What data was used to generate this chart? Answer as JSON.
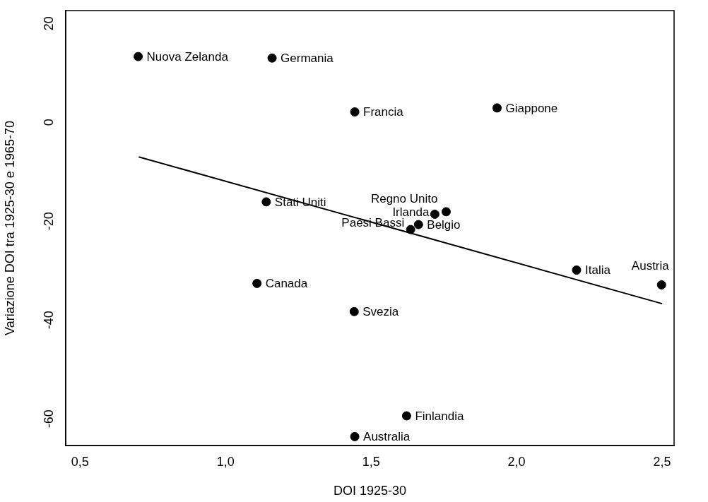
{
  "chart_data": {
    "type": "scatter",
    "xlabel": "DOI 1925-30",
    "ylabel": "Variazione DOI tra 1925-30 e 1965-70",
    "xlim": [
      0.451,
      2.541
    ],
    "ylim": [
      -65.4,
      22.6
    ],
    "xticks": [
      {
        "value": 0.5,
        "label": "0,5"
      },
      {
        "value": 1,
        "label": "1,0"
      },
      {
        "value": 1.5,
        "label": "1,5"
      },
      {
        "value": 2,
        "label": "2,0"
      },
      {
        "value": 2.5,
        "label": "2,5"
      }
    ],
    "yticks": [
      -60,
      -40,
      -20,
      0,
      20
    ],
    "grid": false,
    "legend": false,
    "marker": "circle",
    "series": [
      {
        "name": "Nuova Zelanda",
        "color": "#000000",
        "x": [
          0.7
        ],
        "values": [
          13.3
        ]
      },
      {
        "name": "Germania",
        "color": "#000000",
        "x": [
          1.16
        ],
        "values": [
          13.0
        ]
      },
      {
        "name": "Francia",
        "color": "#000000",
        "x": [
          1.444
        ],
        "values": [
          2.1
        ]
      },
      {
        "name": "Giappone",
        "color": "#000000",
        "x": [
          1.933
        ],
        "values": [
          2.9
        ]
      },
      {
        "name": "Stati Uniti",
        "color": "#000000",
        "x": [
          1.14
        ],
        "values": [
          -16.1
        ]
      },
      {
        "name": "Regno Unito",
        "color": "#000000",
        "x": [
          1.758
        ],
        "values": [
          -18.1
        ]
      },
      {
        "name": "Irlanda",
        "color": "#000000",
        "x": [
          1.719
        ],
        "values": [
          -18.6
        ]
      },
      {
        "name": "Belgio",
        "color": "#000000",
        "x": [
          1.663
        ],
        "values": [
          -20.7
        ]
      },
      {
        "name": "Paesi Bassi",
        "color": "#000000",
        "x": [
          1.636
        ],
        "values": [
          -21.7
        ]
      },
      {
        "name": "Italia",
        "color": "#000000",
        "x": [
          2.206
        ],
        "values": [
          -29.9
        ]
      },
      {
        "name": "Austria",
        "color": "#000000",
        "x": [
          2.498
        ],
        "values": [
          -32.9
        ]
      },
      {
        "name": "Canada",
        "color": "#000000",
        "x": [
          1.108
        ],
        "values": [
          -32.6
        ]
      },
      {
        "name": "Svezia",
        "color": "#000000",
        "x": [
          1.442
        ],
        "values": [
          -38.3
        ]
      },
      {
        "name": "Finlandia",
        "color": "#000000",
        "x": [
          1.622
        ],
        "values": [
          -59.4
        ]
      },
      {
        "name": "Australia",
        "color": "#000000",
        "x": [
          1.444
        ],
        "values": [
          -63.6
        ]
      },
      {
        "type": "line",
        "color": "#000000",
        "marker": "none",
        "x": [
          0.702,
          2.5
        ],
        "values": [
          -7.0,
          -36.7
        ]
      }
    ]
  }
}
